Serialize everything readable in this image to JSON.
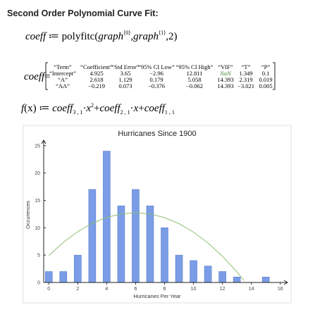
{
  "header": {
    "title": "Second Order Polynomial Curve Fit:"
  },
  "formula_1": [
    "coeff",
    "≔",
    "polyfitc",
    "(",
    "graph",
    "⟨0⟩",
    ",",
    "graph",
    "⟨1⟩",
    ",",
    "2",
    ")"
  ],
  "matrix": {
    "name": "coeff",
    "sign": "=",
    "rows": [
      [
        "“Term”",
        "“Coefficient”",
        "“Std Error”",
        "“95% CI Low”",
        "“95% CI High”",
        "“VIF”",
        "“T”",
        "“P”"
      ],
      [
        "“Intercept”",
        "4.925",
        "3.65",
        "−2.96",
        "12.811",
        "NaN",
        "1.349",
        "0.1"
      ],
      [
        "“A”",
        "2.618",
        "1.129",
        "0.179",
        "5.058",
        "14.393",
        "2.319",
        "0.019"
      ],
      [
        "“AA”",
        "−0.219",
        "0.073",
        "−0.376",
        "−0.062",
        "14.393",
        "−3.021",
        "0.005"
      ]
    ]
  },
  "formula_2": [
    "f",
    "(x)",
    "≔",
    "coeff",
    "3 , 1",
    "·",
    "x",
    "2",
    "+",
    "coeff",
    "2 , 1",
    "·",
    "x",
    "+",
    "coeff",
    "1 , 1"
  ],
  "chart_data": {
    "type": "bar",
    "title": "Hurricanes Since 1900",
    "x_label": "Hurricanes Per Year",
    "y_label": "Occurences",
    "x": [
      0,
      1,
      2,
      3,
      4,
      5,
      6,
      7,
      8,
      9,
      10,
      11,
      12,
      13,
      15
    ],
    "values": [
      2,
      2,
      5,
      17,
      24,
      14,
      17,
      14,
      10,
      5,
      4,
      3,
      2,
      1,
      1
    ],
    "color": "#7b9ce6",
    "fit": {
      "type": "line",
      "color": "#8fbf72",
      "x": [
        0,
        1,
        2,
        3,
        4,
        5,
        6,
        7,
        8,
        9,
        10,
        11,
        12,
        13,
        13.5
      ],
      "values": [
        4.925,
        7.324,
        9.285,
        10.808,
        11.893,
        12.54,
        12.749,
        12.52,
        11.853,
        10.748,
        9.205,
        7.224,
        4.805,
        1.948,
        0.355
      ]
    },
    "xlim": [
      -0.5,
      16.5
    ],
    "ylim": [
      0,
      26
    ],
    "xticks": [
      0,
      2,
      4,
      6,
      8,
      10,
      12,
      14,
      16
    ],
    "yticks": [
      0,
      5,
      10,
      15,
      20,
      25
    ]
  }
}
